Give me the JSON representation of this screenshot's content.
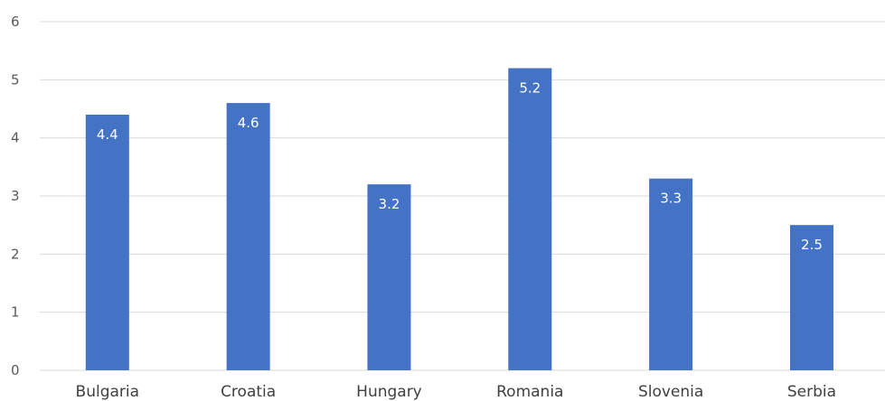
{
  "chart_data": {
    "type": "bar",
    "categories": [
      "Bulgaria",
      "Croatia",
      "Hungary",
      "Romania",
      "Slovenia",
      "Serbia"
    ],
    "values": [
      4.4,
      4.6,
      3.2,
      5.2,
      3.3,
      2.5
    ],
    "data_labels": [
      "4.4",
      "4.6",
      "3.2",
      "5.2",
      "3.3",
      "2.5"
    ],
    "yticks": [
      "0",
      "1",
      "2",
      "3",
      "4",
      "5",
      "6"
    ],
    "ylim": [
      0,
      6
    ],
    "grid": true,
    "legend": "none",
    "title": "",
    "xlabel": "",
    "ylabel": "",
    "colors": {
      "bar": "#4472c4",
      "label": "#ffffff",
      "grid": "#d9d9d9"
    }
  }
}
